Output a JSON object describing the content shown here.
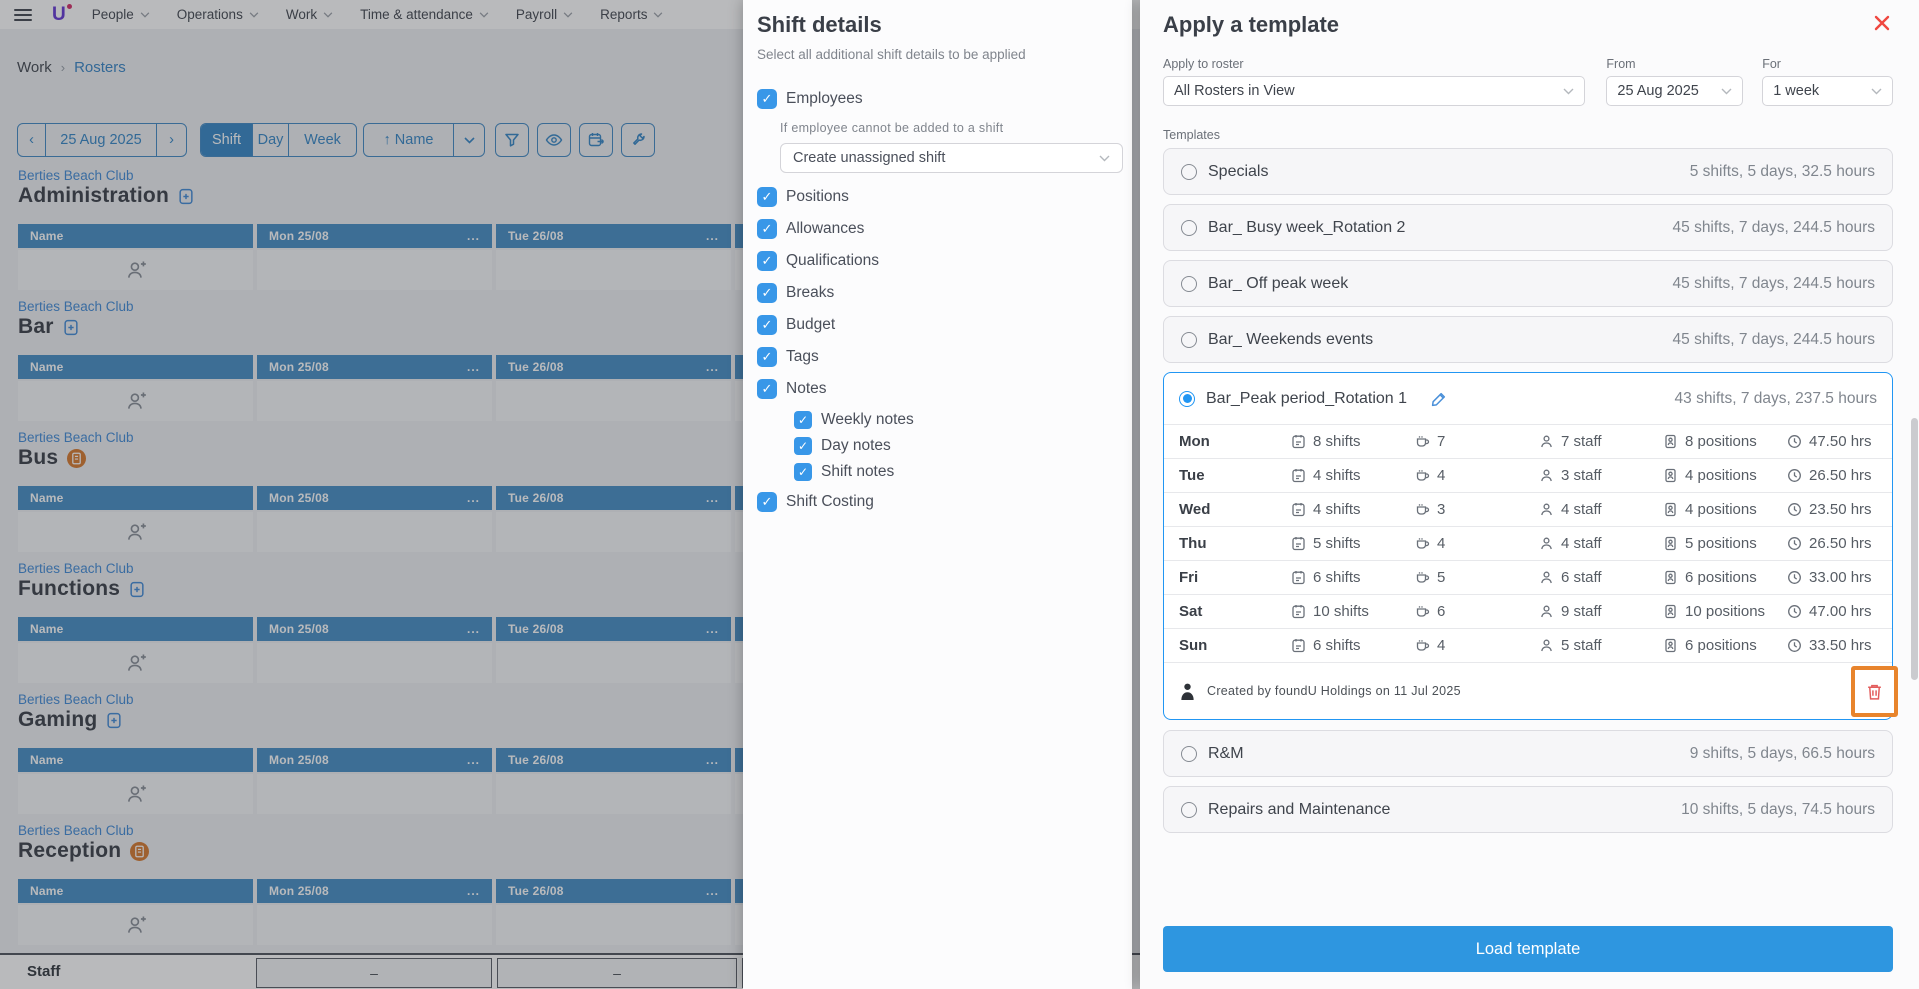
{
  "nav": {
    "items": [
      {
        "label": "People"
      },
      {
        "label": "Operations"
      },
      {
        "label": "Work"
      },
      {
        "label": "Time & attendance"
      },
      {
        "label": "Payroll"
      },
      {
        "label": "Reports"
      }
    ]
  },
  "breadcrumb": {
    "parent": "Work",
    "separator": "›",
    "current": "Rosters"
  },
  "toolbar": {
    "prev": "‹",
    "date": "25 Aug 2025",
    "next": "›",
    "views": [
      "Shift",
      "Day",
      "Week"
    ],
    "active_view": "Shift",
    "sort_arrow": "↑",
    "sort_label": "Name"
  },
  "roster": {
    "venue": "Berties Beach Club",
    "columns": [
      "Name",
      "Mon 25/08",
      "Tue 26/08"
    ],
    "header_menu": "...",
    "sections": [
      {
        "name": "Administration",
        "badge": "blue-note"
      },
      {
        "name": "Bar",
        "badge": "blue-note"
      },
      {
        "name": "Bus",
        "badge": "orange-note"
      },
      {
        "name": "Functions",
        "badge": "blue-note"
      },
      {
        "name": "Gaming",
        "badge": "blue-note"
      },
      {
        "name": "Reception",
        "badge": "orange-note"
      }
    ],
    "footer": {
      "label": "Staff",
      "cells": [
        "–",
        "–",
        "–"
      ]
    }
  },
  "shift_details": {
    "title": "Shift details",
    "subtitle": "Select all additional shift details to be applied",
    "employees_option": "Employees",
    "fallback_label": "If employee cannot be added to a shift",
    "fallback_value": "Create unassigned shift",
    "options": [
      "Positions",
      "Allowances",
      "Qualifications",
      "Breaks",
      "Budget",
      "Tags"
    ],
    "notes_option": "Notes",
    "notes_children": [
      "Weekly notes",
      "Day notes",
      "Shift notes"
    ],
    "costing_option": "Shift Costing"
  },
  "apply_template": {
    "title": "Apply a template",
    "fields": [
      {
        "label": "Apply to roster",
        "value": "All Rosters in View"
      },
      {
        "label": "From",
        "value": "25 Aug 2025"
      },
      {
        "label": "For",
        "value": "1 week"
      }
    ],
    "templates_label": "Templates",
    "templates": [
      {
        "name": "Specials",
        "summary": "5 shifts, 5 days, 32.5 hours",
        "selected": false
      },
      {
        "name": "Bar_ Busy week_Rotation 2",
        "summary": "45 shifts, 7 days, 244.5 hours",
        "selected": false
      },
      {
        "name": "Bar_ Off peak week",
        "summary": "45 shifts, 7 days, 244.5 hours",
        "selected": false
      },
      {
        "name": "Bar_ Weekends events",
        "summary": "45 shifts, 7 days, 244.5 hours",
        "selected": false
      },
      {
        "name": "Bar_Peak period_Rotation 1",
        "summary": "43 shifts, 7 days, 237.5 hours",
        "selected": true
      },
      {
        "name": "R&M",
        "summary": "9 shifts, 5 days, 66.5 hours",
        "selected": false
      },
      {
        "name": "Repairs and Maintenance",
        "summary": "10 shifts, 5 days, 74.5 hours",
        "selected": false
      }
    ],
    "selected_detail": {
      "days": [
        {
          "day": "Mon",
          "shifts": "8 shifts",
          "breaks": "7",
          "staff": "7 staff",
          "positions": "8 positions",
          "hours": "47.50 hrs"
        },
        {
          "day": "Tue",
          "shifts": "4 shifts",
          "breaks": "4",
          "staff": "3 staff",
          "positions": "4 positions",
          "hours": "26.50 hrs"
        },
        {
          "day": "Wed",
          "shifts": "4 shifts",
          "breaks": "3",
          "staff": "4 staff",
          "positions": "4 positions",
          "hours": "23.50 hrs"
        },
        {
          "day": "Thu",
          "shifts": "5 shifts",
          "breaks": "4",
          "staff": "4 staff",
          "positions": "5 positions",
          "hours": "26.50 hrs"
        },
        {
          "day": "Fri",
          "shifts": "6 shifts",
          "breaks": "5",
          "staff": "6 staff",
          "positions": "6 positions",
          "hours": "33.00 hrs"
        },
        {
          "day": "Sat",
          "shifts": "10 shifts",
          "breaks": "6",
          "staff": "9 staff",
          "positions": "10 positions",
          "hours": "47.00 hrs"
        },
        {
          "day": "Sun",
          "shifts": "6 shifts",
          "breaks": "4",
          "staff": "5 staff",
          "positions": "6 positions",
          "hours": "33.50 hrs"
        }
      ],
      "created_by": "Created by foundU Holdings on 11 Jul 2025"
    },
    "load_button": "Load template"
  },
  "colors": {
    "accent_blue": "#2e96e0",
    "table_header_blue": "#4e93c8",
    "selected_border": "#2196f3",
    "highlight_orange": "#e8842c",
    "delete_red": "#e35d5d",
    "close_red": "#f04740",
    "brand_purple": "#6b3fd6"
  }
}
